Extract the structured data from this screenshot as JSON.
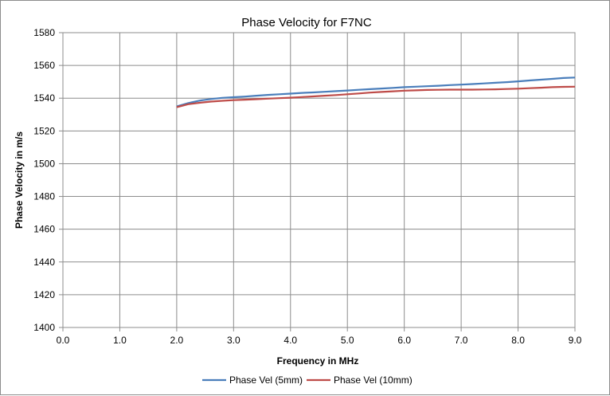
{
  "chart_data": {
    "type": "line",
    "title": "Phase Velocity for F7NC",
    "xlabel": "Frequency in MHz",
    "ylabel": "Phase Velocity in m/s",
    "xlim": [
      0.0,
      9.0
    ],
    "ylim": [
      1400,
      1580
    ],
    "xticks": [
      "0.0",
      "1.0",
      "2.0",
      "3.0",
      "4.0",
      "5.0",
      "6.0",
      "7.0",
      "8.0",
      "9.0"
    ],
    "yticks": [
      "1400",
      "1420",
      "1440",
      "1460",
      "1480",
      "1500",
      "1520",
      "1540",
      "1560",
      "1580"
    ],
    "grid": true,
    "legend_position": "bottom",
    "series": [
      {
        "name": "Phase Vel (5mm)",
        "color": "#4a7ebb",
        "x": [
          2.0,
          2.2,
          2.4,
          2.6,
          2.8,
          3.0,
          3.2,
          3.4,
          3.6,
          3.8,
          4.0,
          4.2,
          4.4,
          4.6,
          4.8,
          5.0,
          5.2,
          5.4,
          5.6,
          5.8,
          6.0,
          6.2,
          6.4,
          6.6,
          6.8,
          7.0,
          7.2,
          7.4,
          7.6,
          7.8,
          8.0,
          8.2,
          8.4,
          8.6,
          8.8,
          9.0
        ],
        "y": [
          1535,
          1537,
          1538.5,
          1539.5,
          1540.2,
          1540.6,
          1541,
          1541.5,
          1542,
          1542.4,
          1542.8,
          1543.2,
          1543.5,
          1543.9,
          1544.3,
          1544.7,
          1545.1,
          1545.5,
          1545.9,
          1546.3,
          1546.7,
          1547,
          1547.3,
          1547.6,
          1548,
          1548.3,
          1548.6,
          1549,
          1549.4,
          1549.8,
          1550.3,
          1550.8,
          1551.3,
          1551.8,
          1552.3,
          1552.6
        ]
      },
      {
        "name": "Phase Vel (10mm)",
        "color": "#be4b48",
        "x": [
          2.0,
          2.2,
          2.4,
          2.6,
          2.8,
          3.0,
          3.2,
          3.4,
          3.6,
          3.8,
          4.0,
          4.2,
          4.4,
          4.6,
          4.8,
          5.0,
          5.2,
          5.4,
          5.6,
          5.8,
          6.0,
          6.2,
          6.4,
          6.6,
          6.8,
          7.0,
          7.2,
          7.4,
          7.6,
          7.8,
          8.0,
          8.2,
          8.4,
          8.6,
          8.8,
          9.0
        ],
        "y": [
          1534.5,
          1536.3,
          1537.2,
          1537.9,
          1538.4,
          1538.8,
          1539.1,
          1539.4,
          1539.7,
          1540,
          1540.3,
          1540.7,
          1541.1,
          1541.5,
          1541.9,
          1542.4,
          1542.9,
          1543.4,
          1543.8,
          1544.2,
          1544.6,
          1544.8,
          1545,
          1545.1,
          1545.2,
          1545.2,
          1545.2,
          1545.3,
          1545.4,
          1545.6,
          1545.8,
          1546.1,
          1546.4,
          1546.7,
          1546.9,
          1547
        ]
      }
    ]
  }
}
